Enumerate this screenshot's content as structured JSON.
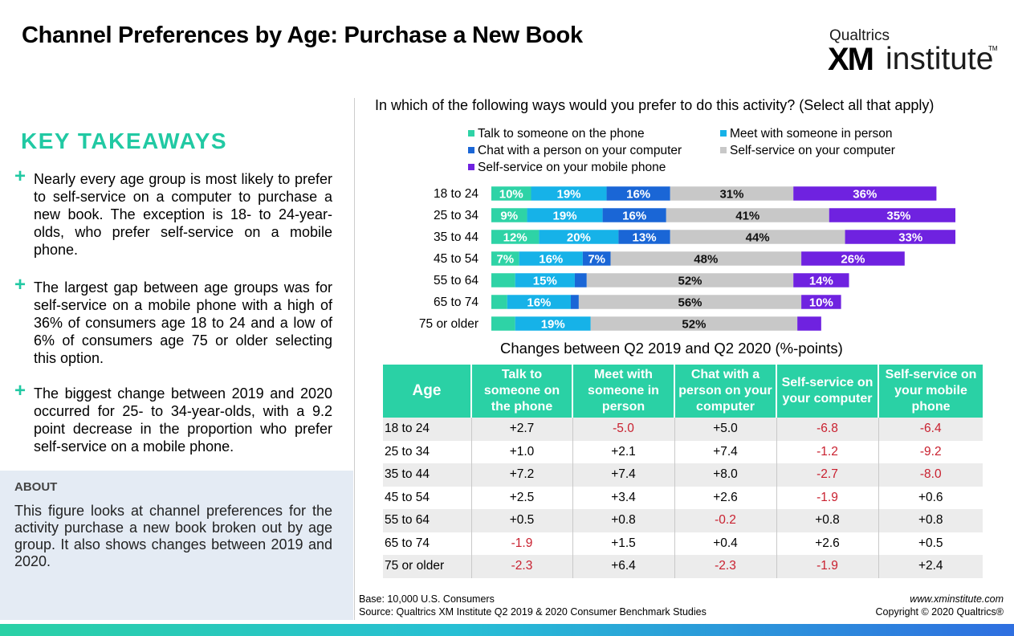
{
  "title": "Channel Preferences by Age: Purchase a New Book",
  "logo": {
    "brand": "Qualtrics",
    "xm": "XM",
    "institute": "institute",
    "tm": "TM"
  },
  "takeaways": {
    "heading": "KEY TAKEAWAYS",
    "items": [
      {
        "plus": "+",
        "text": "Nearly every age group is most likely to prefer to self-service on a computer to purchase a new book. The exception is 18- to 24-year-olds, who prefer self-service on a mobile phone."
      },
      {
        "plus": "+",
        "text": "The largest gap between age groups was for self-service on a mobile phone with a high of 36% of consumers age 18 to 24 and a low of 6% of consumers age 75 or older selecting this option."
      },
      {
        "plus": "+",
        "text": "The biggest change between 2019 and 2020 occurred for 25- to 34-year-olds, with a 9.2 point decrease in the proportion who prefer self-service on a mobile phone."
      }
    ]
  },
  "about": {
    "title": "ABOUT",
    "text": "This figure looks at channel preferences for the activity purchase a new book broken out by age group. It also shows changes between 2019 and 2020."
  },
  "colors": {
    "accent": "#21c9a3",
    "negative": "#c9202f",
    "table_header": "#2ad1a5"
  },
  "chart_data": [
    {
      "type": "bar",
      "orientation": "horizontal",
      "stacked": true,
      "title": "In which of the following ways would you prefer to do this activity? (Select all that apply)",
      "categories": [
        "18 to 24",
        "25 to 34",
        "35 to 44",
        "45 to 54",
        "55 to 64",
        "65 to 74",
        "75 or older"
      ],
      "legend_position": "top",
      "series": [
        {
          "name": "Talk to someone on the phone",
          "color": "#2ed3a6",
          "values": [
            10,
            9,
            12,
            7,
            6,
            4,
            6
          ]
        },
        {
          "name": "Meet with someone in person",
          "color": "#16b2e8",
          "values": [
            19,
            19,
            20,
            16,
            15,
            16,
            19
          ]
        },
        {
          "name": "Chat with a person on your computer",
          "color": "#1a66d6",
          "values": [
            16,
            16,
            13,
            7,
            3,
            2,
            0
          ]
        },
        {
          "name": "Self-service on your computer",
          "color": "#c8c8c8",
          "values": [
            31,
            41,
            44,
            48,
            52,
            56,
            52
          ]
        },
        {
          "name": "Self-service on your mobile phone",
          "color": "#6f22e0",
          "values": [
            36,
            35,
            33,
            26,
            14,
            10,
            6
          ]
        }
      ],
      "labels": [
        [
          "10%",
          "19%",
          "16%",
          "31%",
          "36%"
        ],
        [
          "9%",
          "19%",
          "16%",
          "41%",
          "35%"
        ],
        [
          "12%",
          "20%",
          "13%",
          "44%",
          "33%"
        ],
        [
          "7%",
          "16%",
          "7%",
          "48%",
          "26%"
        ],
        [
          "",
          "15%",
          "",
          "52%",
          "14%"
        ],
        [
          "",
          "16%",
          "",
          "56%",
          "10%"
        ],
        [
          "",
          "19%",
          "",
          "52%",
          ""
        ]
      ]
    },
    {
      "type": "table",
      "title": "Changes between Q2 2019 and Q2 2020 (%-points)",
      "columns": [
        "Age",
        "Talk to someone on the phone",
        "Meet with someone in person",
        "Chat with a person on your computer",
        "Self-service on your computer",
        "Self-service on your mobile phone"
      ],
      "rows": [
        [
          "18 to 24",
          "+2.7",
          "-5.0",
          "+5.0",
          "-6.8",
          "-6.4"
        ],
        [
          "25 to 34",
          "+1.0",
          "+2.1",
          "+7.4",
          "-1.2",
          "-9.2"
        ],
        [
          "35 to 44",
          "+7.2",
          "+7.4",
          "+8.0",
          "-2.7",
          "-8.0"
        ],
        [
          "45 to 54",
          "+2.5",
          "+3.4",
          "+2.6",
          "-1.9",
          "+0.6"
        ],
        [
          "55 to 64",
          "+0.5",
          "+0.8",
          "-0.2",
          "+0.8",
          "+0.8"
        ],
        [
          "65 to 74",
          "-1.9",
          "+1.5",
          "+0.4",
          "+2.6",
          "+0.5"
        ],
        [
          "75 or older",
          "-2.3",
          "+6.4",
          "-2.3",
          "-1.9",
          "+2.4"
        ]
      ]
    }
  ],
  "footer": {
    "base": "Base: 10,000 U.S. Consumers",
    "source": "Source: Qualtrics XM Institute Q2 2019 & 2020 Consumer Benchmark Studies",
    "site": "www.xminstitute.com",
    "copyright": "Copyright © 2020 Qualtrics®"
  }
}
